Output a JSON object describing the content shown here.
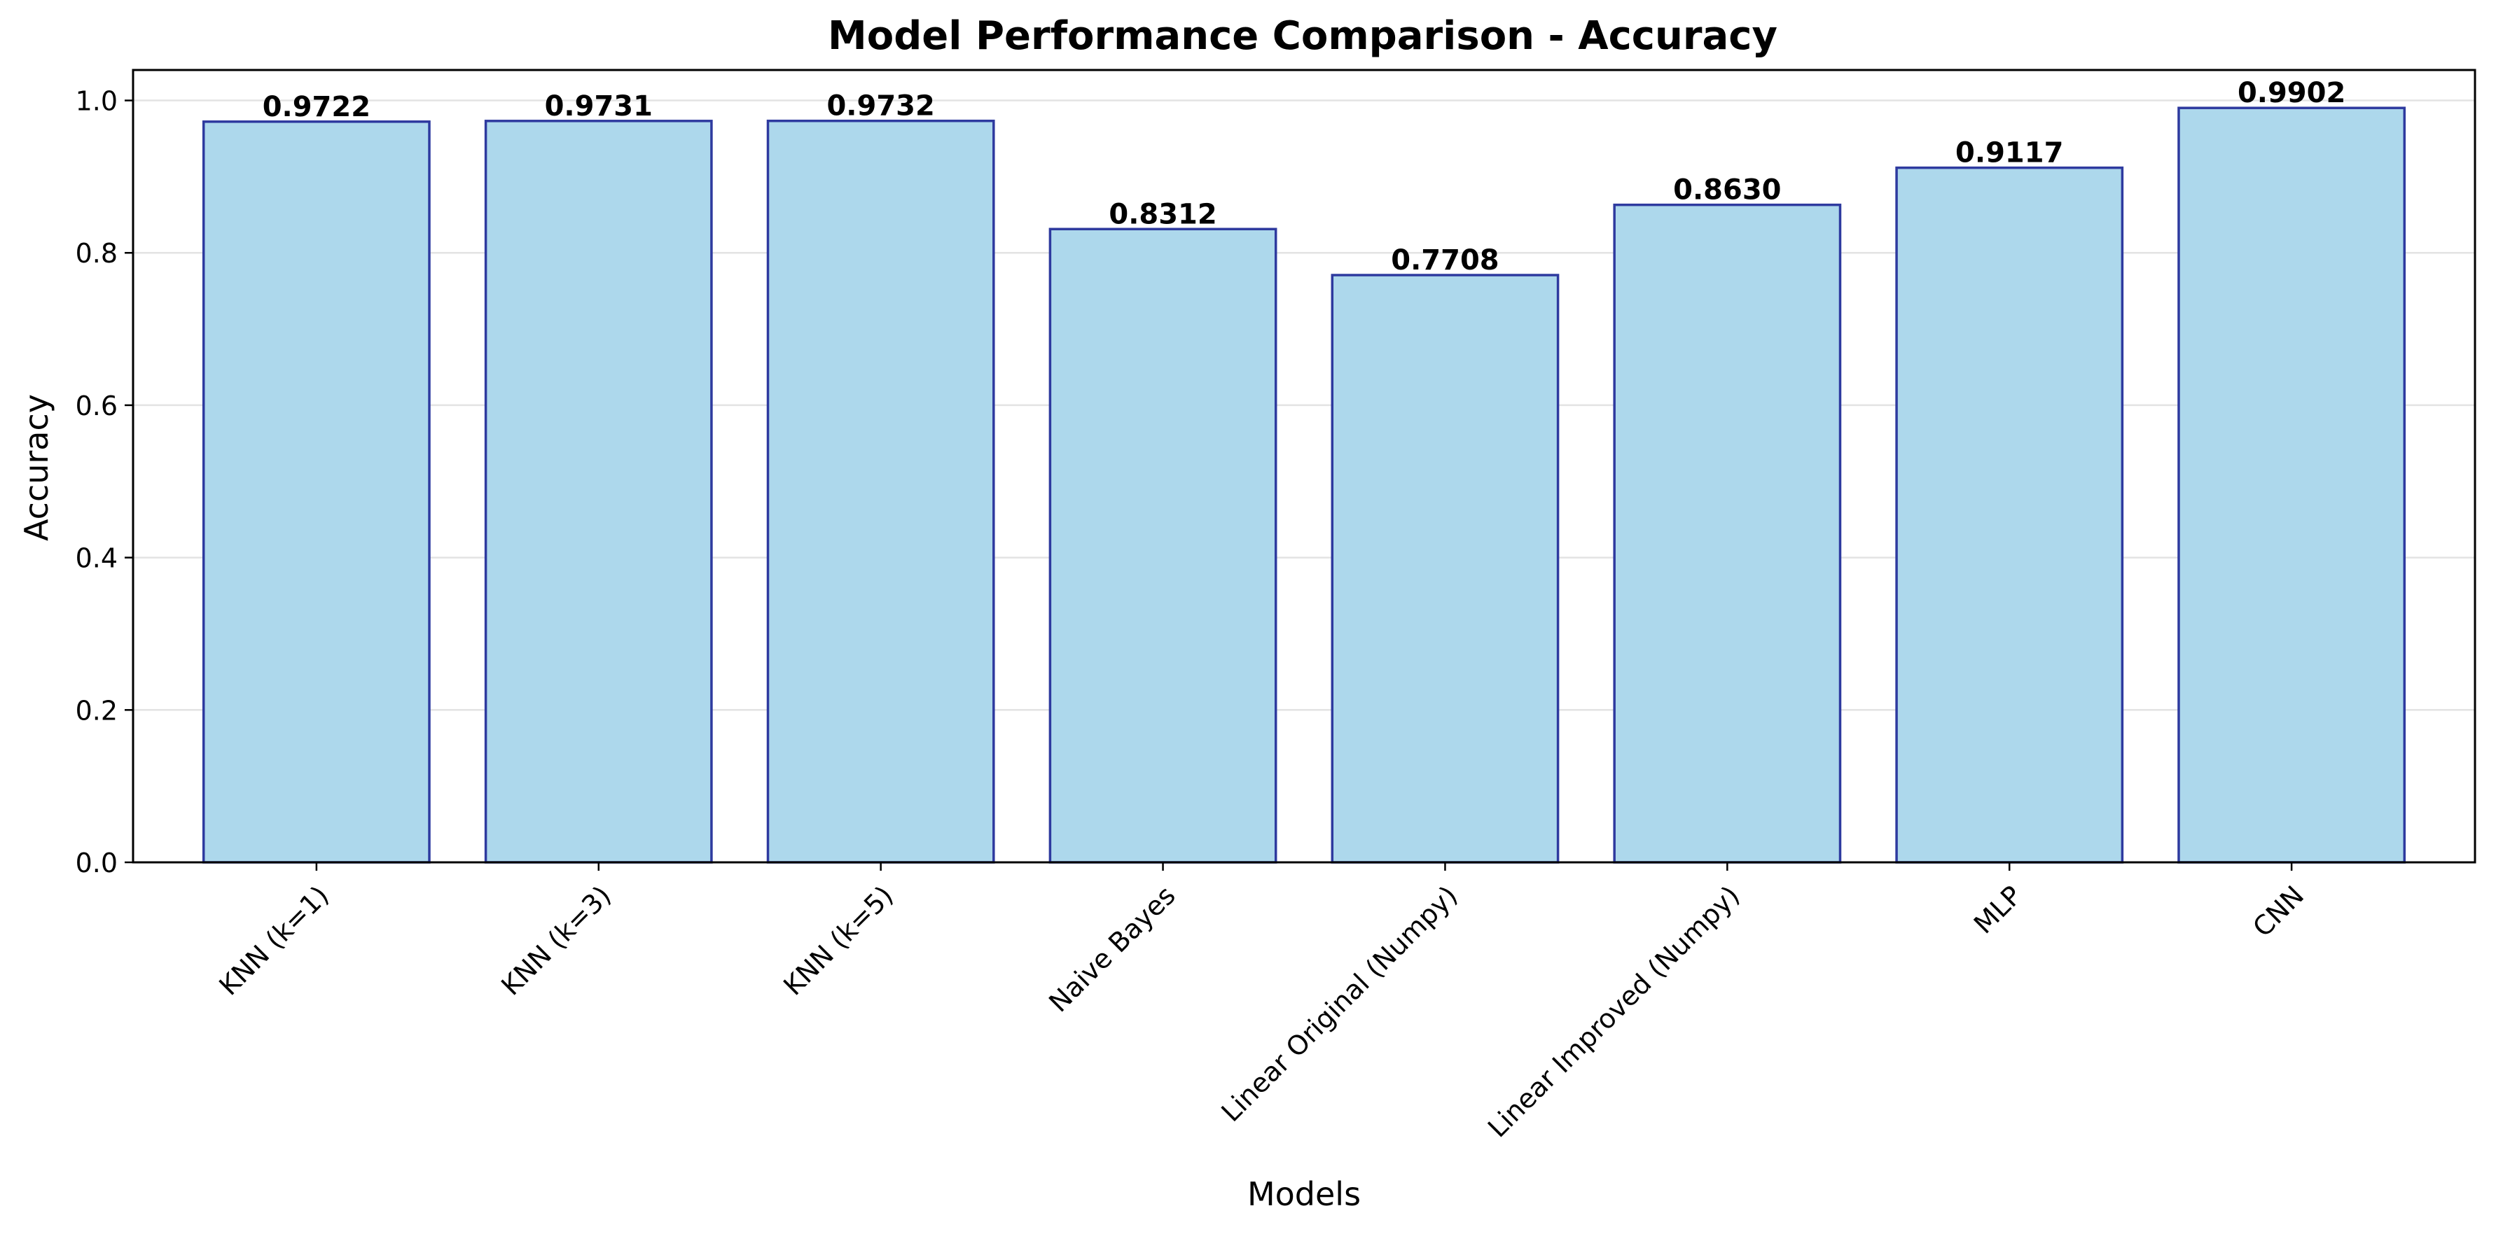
{
  "chart_data": {
    "type": "bar",
    "title": "Model Performance Comparison - Accuracy",
    "xlabel": "Models",
    "ylabel": "Accuracy",
    "categories": [
      "KNN (k=1)",
      "KNN (k=3)",
      "KNN (k=5)",
      "Naive Bayes",
      "Linear Original (Numpy)",
      "Linear Improved (Numpy)",
      "MLP",
      "CNN"
    ],
    "values": [
      0.9722,
      0.9731,
      0.9732,
      0.8312,
      0.7708,
      0.863,
      0.9117,
      0.9902
    ],
    "value_labels": [
      "0.9722",
      "0.9731",
      "0.9732",
      "0.8312",
      "0.7708",
      "0.8630",
      "0.9117",
      "0.9902"
    ],
    "ylim": [
      0,
      1.04
    ],
    "yticks": [
      0.0,
      0.2,
      0.4,
      0.6,
      0.8,
      1.0
    ],
    "ytick_labels": [
      "0.0",
      "0.2",
      "0.4",
      "0.6",
      "0.8",
      "1.0"
    ],
    "grid": "y",
    "bar_color": "#add8ec",
    "bar_edge_color": "#2e3a9f"
  }
}
